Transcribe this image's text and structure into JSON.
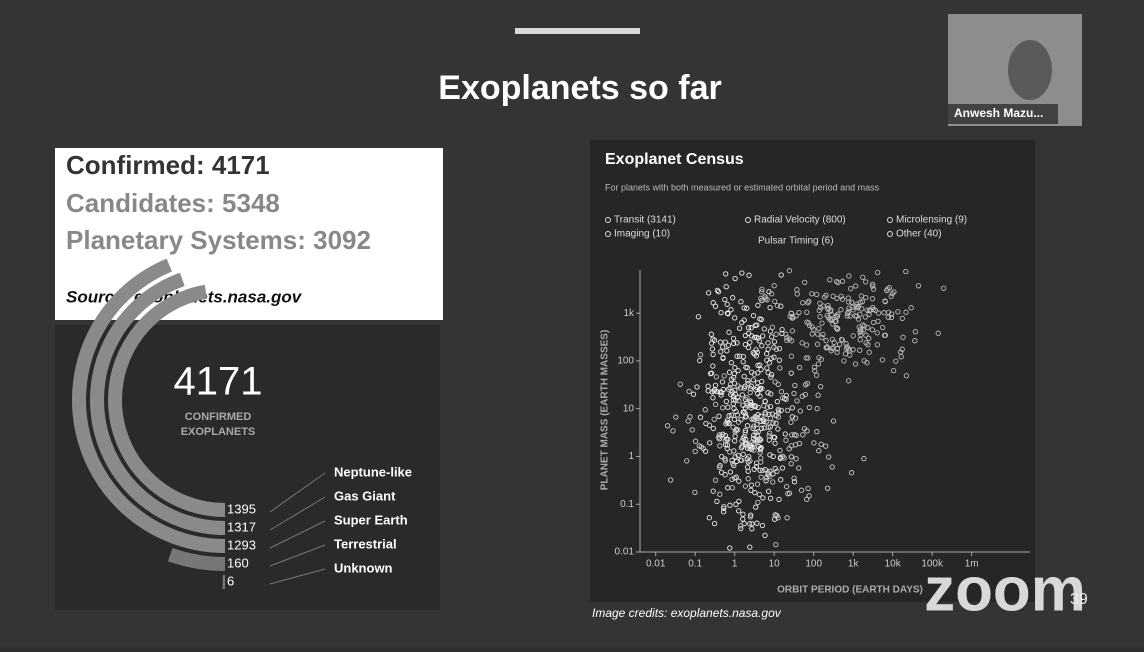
{
  "meeting": {
    "participant_name": "Anwesh Mazu..."
  },
  "app": {
    "logo": "zoom"
  },
  "slide": {
    "title": "Exoplanets so far",
    "stats": [
      "Confirmed: 4171",
      "Candidates: 5348",
      "Planetary Systems: 3092"
    ],
    "source": "Source: exoplanets.nasa.gov",
    "infographic": {
      "total": "4171",
      "caption": [
        "CONFIRMED",
        "EXOPLANETS"
      ],
      "bars": [
        {
          "name": "Neptune-like",
          "value": 1395
        },
        {
          "name": "Gas Giant",
          "value": 1317
        },
        {
          "name": "Super Earth",
          "value": 1293
        },
        {
          "name": "Terrestrial",
          "value": 160
        },
        {
          "name": "Unknown",
          "value": 6
        }
      ]
    },
    "census": {
      "title": "Exoplanet Census",
      "subtitle": "For planets with both measured or estimated orbital period and mass",
      "legend": [
        "Transit (3141)",
        "Radial Velocity (800)",
        "Microlensing (9)",
        "Imaging (10)",
        "Pulsar Timing (6)",
        "Other (40)"
      ],
      "x_label": "ORBIT PERIOD (EARTH DAYS)",
      "y_label": "PLANET MASS (EARTH MASSES)",
      "log_scale": true,
      "xlim": [
        0.004,
        30000000
      ],
      "ylim": [
        0.01,
        8000
      ],
      "xticks": [
        0.01,
        0.1,
        1,
        10,
        100,
        {
          "value": 1000,
          "label": "1k"
        },
        {
          "value": 10000,
          "label": "10k"
        },
        {
          "value": 100000,
          "label": "100k"
        },
        {
          "value": 1000000,
          "label": "1m"
        }
      ],
      "yticks": [
        0.01,
        0.1,
        1,
        10,
        100,
        {
          "value": 1000,
          "label": "1k"
        }
      ]
    },
    "image_credits": "Image credits: exoplanets.nasa.gov",
    "page_number": "39"
  }
}
